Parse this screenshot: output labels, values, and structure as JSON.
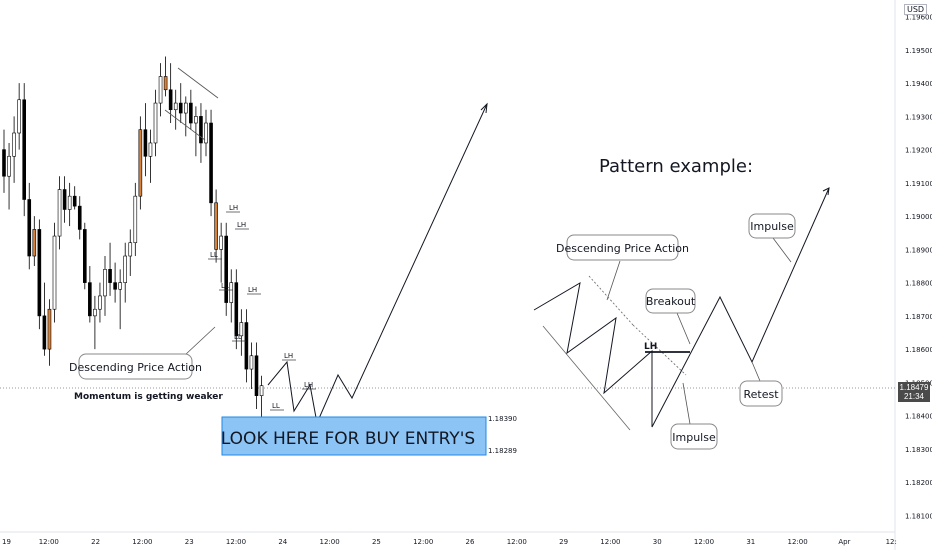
{
  "axis": {
    "currency": "USD",
    "y_ticks": [
      "1.19600",
      "1.19500",
      "1.19400",
      "1.19300",
      "1.19200",
      "1.19100",
      "1.19000",
      "1.18900",
      "1.18800",
      "1.18700",
      "1.18600",
      "1.18500",
      "1.18400",
      "1.18300",
      "1.18200",
      "1.18100"
    ],
    "x_ticks": [
      "19",
      "12:00",
      "22",
      "12:00",
      "23",
      "12:00",
      "24",
      "12:00",
      "25",
      "12:00",
      "26",
      "12:00",
      "29",
      "12:00",
      "30",
      "12:00",
      "31",
      "12:00",
      "Apr",
      "12:"
    ],
    "current_price": "1.18479",
    "countdown": "21:34"
  },
  "annotations": {
    "descending_left": "Descending Price Action",
    "momentum": "Momentum is getting weaker",
    "buy_entry": "LOOK HERE FOR BUY ENTRY'S",
    "zone_top": "1.18390",
    "zone_bottom": "1.18289",
    "pattern_title": "Pattern example:",
    "descending_right": "Descending Price Action",
    "breakout": "Breakout",
    "impulse_top": "Impulse",
    "retest": "Retest",
    "impulse_bottom": "Impulse",
    "lh_pattern": "LH"
  },
  "swing_labels": [
    "LH",
    "LH",
    "LL",
    "LL",
    "LH",
    "LL",
    "LH",
    "LL",
    "LH",
    "LL"
  ],
  "colors": {
    "up_candle": "#ffffff",
    "down_candle": "#000000",
    "highlight_candle": "#d9823b",
    "zone_fill": "#8cc4f6",
    "zone_border": "#1e88e5",
    "price_tag": "#4a4a4a"
  },
  "chart_data": {
    "type": "candlestick",
    "instrument_currency": "USD",
    "ylim": [
      1.1805,
      1.1965
    ],
    "candles": [
      {
        "o": 1.192,
        "h": 1.1926,
        "l": 1.1907,
        "c": 1.1912
      },
      {
        "o": 1.1912,
        "h": 1.1922,
        "l": 1.1902,
        "c": 1.1918
      },
      {
        "o": 1.1918,
        "h": 1.193,
        "l": 1.191,
        "c": 1.1925
      },
      {
        "o": 1.1925,
        "h": 1.194,
        "l": 1.192,
        "c": 1.1935
      },
      {
        "o": 1.1935,
        "h": 1.194,
        "l": 1.19,
        "c": 1.1905
      },
      {
        "o": 1.1905,
        "h": 1.191,
        "l": 1.1884,
        "c": 1.1888
      },
      {
        "o": 1.1888,
        "h": 1.19,
        "l": 1.1885,
        "c": 1.1896
      },
      {
        "o": 1.1896,
        "h": 1.1899,
        "l": 1.1866,
        "c": 1.187
      },
      {
        "o": 1.187,
        "h": 1.188,
        "l": 1.1858,
        "c": 1.186
      },
      {
        "o": 1.186,
        "h": 1.1875,
        "l": 1.1855,
        "c": 1.1872
      },
      {
        "o": 1.1872,
        "h": 1.1898,
        "l": 1.1868,
        "c": 1.1894
      },
      {
        "o": 1.1894,
        "h": 1.1912,
        "l": 1.189,
        "c": 1.1908
      },
      {
        "o": 1.1908,
        "h": 1.1912,
        "l": 1.1898,
        "c": 1.1902
      },
      {
        "o": 1.1902,
        "h": 1.191,
        "l": 1.1897,
        "c": 1.1906
      },
      {
        "o": 1.1906,
        "h": 1.1909,
        "l": 1.1902,
        "c": 1.1903
      },
      {
        "o": 1.1903,
        "h": 1.1906,
        "l": 1.1893,
        "c": 1.1896
      },
      {
        "o": 1.1896,
        "h": 1.1898,
        "l": 1.1878,
        "c": 1.188
      },
      {
        "o": 1.188,
        "h": 1.1885,
        "l": 1.1868,
        "c": 1.187
      },
      {
        "o": 1.187,
        "h": 1.1876,
        "l": 1.186,
        "c": 1.1872
      },
      {
        "o": 1.1872,
        "h": 1.188,
        "l": 1.1868,
        "c": 1.1876
      },
      {
        "o": 1.1876,
        "h": 1.1888,
        "l": 1.187,
        "c": 1.1884
      },
      {
        "o": 1.1884,
        "h": 1.1892,
        "l": 1.1876,
        "c": 1.188
      },
      {
        "o": 1.188,
        "h": 1.1886,
        "l": 1.1874,
        "c": 1.1878
      },
      {
        "o": 1.1878,
        "h": 1.1884,
        "l": 1.1866,
        "c": 1.188
      },
      {
        "o": 1.188,
        "h": 1.1892,
        "l": 1.1874,
        "c": 1.1888
      },
      {
        "o": 1.1888,
        "h": 1.1896,
        "l": 1.1882,
        "c": 1.1892
      },
      {
        "o": 1.1892,
        "h": 1.191,
        "l": 1.1888,
        "c": 1.1906
      },
      {
        "o": 1.1906,
        "h": 1.193,
        "l": 1.1902,
        "c": 1.1926
      },
      {
        "o": 1.1926,
        "h": 1.1934,
        "l": 1.1912,
        "c": 1.1918
      },
      {
        "o": 1.1918,
        "h": 1.1926,
        "l": 1.191,
        "c": 1.1922
      },
      {
        "o": 1.1922,
        "h": 1.1938,
        "l": 1.1918,
        "c": 1.1934
      },
      {
        "o": 1.1934,
        "h": 1.1946,
        "l": 1.193,
        "c": 1.1942
      },
      {
        "o": 1.1942,
        "h": 1.1948,
        "l": 1.1936,
        "c": 1.1938
      },
      {
        "o": 1.1938,
        "h": 1.1946,
        "l": 1.1928,
        "c": 1.1932
      },
      {
        "o": 1.1932,
        "h": 1.1938,
        "l": 1.1926,
        "c": 1.1934
      },
      {
        "o": 1.1934,
        "h": 1.194,
        "l": 1.1928,
        "c": 1.1931
      },
      {
        "o": 1.1931,
        "h": 1.1936,
        "l": 1.1924,
        "c": 1.1934
      },
      {
        "o": 1.1934,
        "h": 1.1938,
        "l": 1.1926,
        "c": 1.1928
      },
      {
        "o": 1.1928,
        "h": 1.1933,
        "l": 1.1918,
        "c": 1.193
      },
      {
        "o": 1.193,
        "h": 1.1934,
        "l": 1.1916,
        "c": 1.1922
      },
      {
        "o": 1.1922,
        "h": 1.1932,
        "l": 1.1918,
        "c": 1.1928
      },
      {
        "o": 1.1928,
        "h": 1.1932,
        "l": 1.19,
        "c": 1.1904
      },
      {
        "o": 1.1904,
        "h": 1.1908,
        "l": 1.1886,
        "c": 1.189
      },
      {
        "o": 1.189,
        "h": 1.1898,
        "l": 1.188,
        "c": 1.1894
      },
      {
        "o": 1.1894,
        "h": 1.1898,
        "l": 1.187,
        "c": 1.1874
      },
      {
        "o": 1.1874,
        "h": 1.1884,
        "l": 1.1868,
        "c": 1.188
      },
      {
        "o": 1.188,
        "h": 1.1884,
        "l": 1.186,
        "c": 1.1864
      },
      {
        "o": 1.1864,
        "h": 1.1872,
        "l": 1.1858,
        "c": 1.1868
      },
      {
        "o": 1.1868,
        "h": 1.1872,
        "l": 1.185,
        "c": 1.1854
      },
      {
        "o": 1.1854,
        "h": 1.1862,
        "l": 1.1848,
        "c": 1.1858
      },
      {
        "o": 1.1858,
        "h": 1.1862,
        "l": 1.1842,
        "c": 1.1846
      },
      {
        "o": 1.1846,
        "h": 1.1852,
        "l": 1.1838,
        "c": 1.1849
      }
    ]
  }
}
